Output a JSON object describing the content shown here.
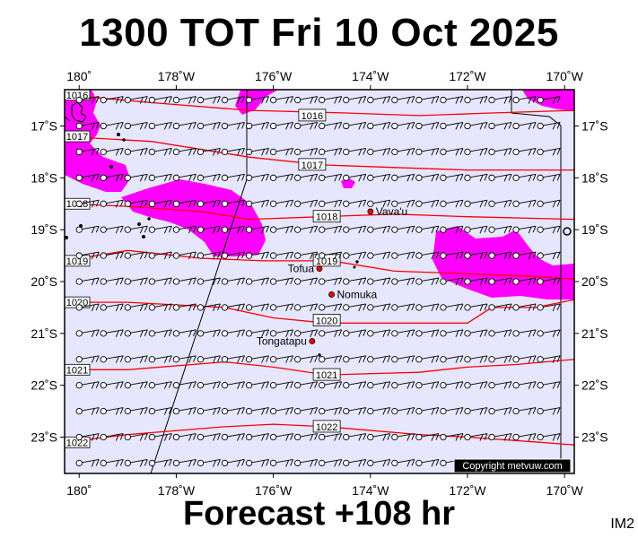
{
  "title": "1300 TOT Fri 10 Oct 2025",
  "footer": "Forecast +108 hr",
  "tag": "IM2",
  "copyright": "Copyright metvuw.com",
  "colors": {
    "background": "#e6e6ff",
    "rain": "#ff00ff",
    "isobar": "#ff0000",
    "land": "#000000"
  },
  "map": {
    "lon_min": -180.3,
    "lon_max": -169.8,
    "lat_min": -23.7,
    "lat_max": -16.3,
    "lon_ticks": [
      {
        "value": -180,
        "label": "180˚"
      },
      {
        "value": -178,
        "label": "178˚W"
      },
      {
        "value": -176,
        "label": "176˚W"
      },
      {
        "value": -174,
        "label": "174˚W"
      },
      {
        "value": -172,
        "label": "172˚W"
      },
      {
        "value": -170,
        "label": "170˚W"
      }
    ],
    "lat_ticks": [
      {
        "value": -17,
        "label": "17˚S"
      },
      {
        "value": -18,
        "label": "18˚S"
      },
      {
        "value": -19,
        "label": "19˚S"
      },
      {
        "value": -20,
        "label": "20˚S"
      },
      {
        "value": -21,
        "label": "21˚S"
      },
      {
        "value": -22,
        "label": "22˚S"
      },
      {
        "value": -23,
        "label": "23˚S"
      }
    ]
  },
  "isobars": [
    {
      "label": "1016",
      "label_at": [
        -175.2,
        -16.8
      ],
      "points": [
        [
          -180.3,
          -16.4
        ],
        [
          -178.5,
          -16.55
        ],
        [
          -176.5,
          -16.7
        ],
        [
          -174.5,
          -16.75
        ],
        [
          -173,
          -16.8
        ],
        [
          -171.5,
          -16.75
        ],
        [
          -169.8,
          -16.7
        ]
      ]
    },
    {
      "label": "1017",
      "label_at": [
        -175.2,
        -17.75
      ],
      "points": [
        [
          -180.3,
          -17.2
        ],
        [
          -178.5,
          -17.3
        ],
        [
          -176.5,
          -17.6
        ],
        [
          -175,
          -17.75
        ],
        [
          -173.5,
          -17.8
        ],
        [
          -172,
          -17.85
        ],
        [
          -169.8,
          -17.85
        ]
      ]
    },
    {
      "label": "1018",
      "label_at": [
        -174.9,
        -18.75
      ],
      "points": [
        [
          -180.3,
          -18.5
        ],
        [
          -179,
          -18.55
        ],
        [
          -177.5,
          -18.65
        ],
        [
          -176.5,
          -18.8
        ],
        [
          -175,
          -18.75
        ],
        [
          -173.5,
          -18.7
        ],
        [
          -172,
          -18.75
        ],
        [
          -169.8,
          -18.8
        ]
      ]
    },
    {
      "label": "1019",
      "label_at": [
        -174.9,
        -19.6
      ],
      "points": [
        [
          -180.3,
          -19.6
        ],
        [
          -179,
          -19.4
        ],
        [
          -177.5,
          -19.55
        ],
        [
          -176.2,
          -19.6
        ],
        [
          -174.8,
          -19.6
        ],
        [
          -173.5,
          -19.8
        ],
        [
          -172,
          -19.85
        ],
        [
          -170.7,
          -19.9
        ],
        [
          -169.8,
          -19.95
        ]
      ]
    },
    {
      "label": "1020",
      "label_at": [
        -174.9,
        -20.75
      ],
      "points": [
        [
          -180.3,
          -20.4
        ],
        [
          -179,
          -20.4
        ],
        [
          -177,
          -20.5
        ],
        [
          -176,
          -20.7
        ],
        [
          -174.9,
          -20.8
        ],
        [
          -173,
          -20.8
        ],
        [
          -172,
          -20.8
        ],
        [
          -171.5,
          -20.5
        ],
        [
          -170.6,
          -20.5
        ],
        [
          -169.8,
          -20.35
        ]
      ]
    },
    {
      "label": "1021",
      "label_at": [
        -174.9,
        -21.8
      ],
      "points": [
        [
          -180.3,
          -21.7
        ],
        [
          -179,
          -21.7
        ],
        [
          -177,
          -21.55
        ],
        [
          -176,
          -21.65
        ],
        [
          -174.9,
          -21.8
        ],
        [
          -173,
          -21.75
        ],
        [
          -172,
          -21.65
        ],
        [
          -171,
          -21.6
        ],
        [
          -169.8,
          -21.5
        ]
      ]
    },
    {
      "label": "1022",
      "label_at": [
        -174.9,
        -22.8
      ],
      "points": [
        [
          -180.3,
          -23.1
        ],
        [
          -179,
          -22.95
        ],
        [
          -177,
          -22.8
        ],
        [
          -176,
          -22.75
        ],
        [
          -174.9,
          -22.8
        ],
        [
          -173,
          -22.95
        ],
        [
          -172,
          -23.0
        ],
        [
          -170.5,
          -23.1
        ],
        [
          -169.8,
          -23.15
        ]
      ]
    }
  ],
  "places": [
    {
      "name": "Vava'u",
      "lon": -174.0,
      "lat": -18.65
    },
    {
      "name": "Tofua",
      "lon": -175.05,
      "lat": -19.75
    },
    {
      "name": "Nomuka",
      "lon": -174.8,
      "lat": -20.25
    },
    {
      "name": "Tongatapu",
      "lon": -175.2,
      "lat": -21.15
    }
  ]
}
